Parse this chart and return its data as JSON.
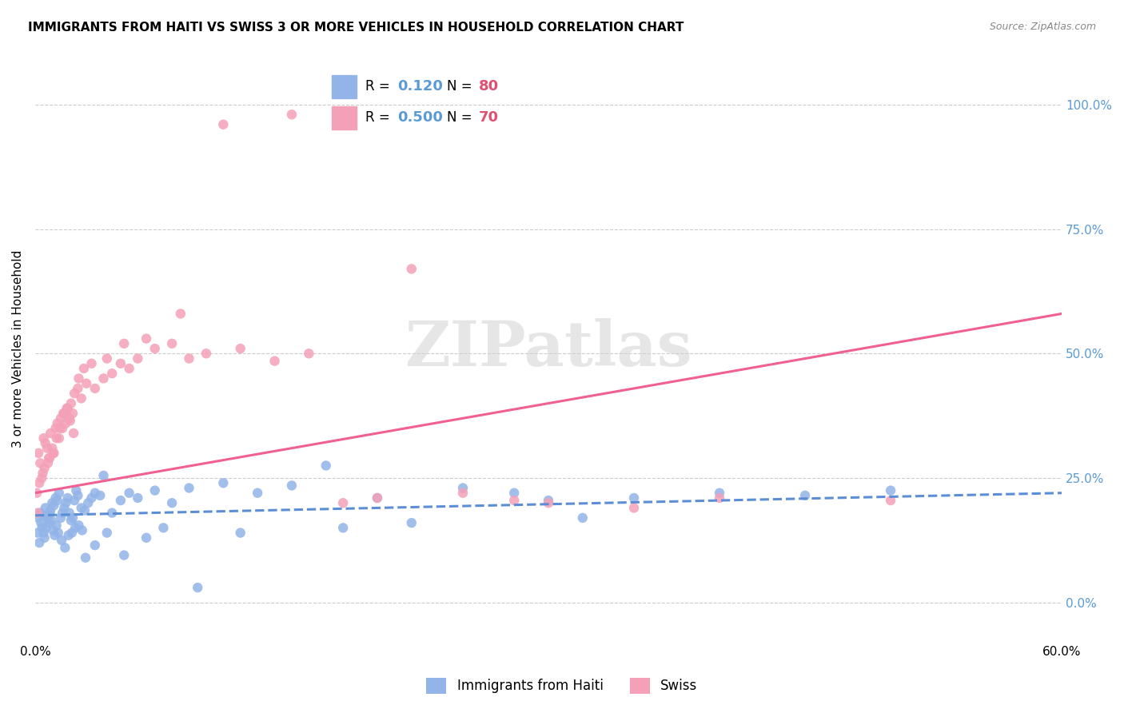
{
  "title": "IMMIGRANTS FROM HAITI VS SWISS 3 OR MORE VEHICLES IN HOUSEHOLD CORRELATION CHART",
  "source": "Source: ZipAtlas.com",
  "ylabel": "3 or more Vehicles in Household",
  "ytick_labels": [
    "0.0%",
    "25.0%",
    "50.0%",
    "75.0%",
    "100.0%"
  ],
  "ytick_values": [
    0.0,
    25.0,
    50.0,
    75.0,
    100.0
  ],
  "xlim": [
    0.0,
    60.0
  ],
  "ylim": [
    -8.0,
    110.0
  ],
  "legend_haiti_R": "0.120",
  "legend_haiti_N": "80",
  "legend_swiss_R": "0.500",
  "legend_swiss_N": "70",
  "haiti_color": "#92b4e8",
  "swiss_color": "#f4a0b8",
  "haiti_line_color": "#5b8ed4",
  "swiss_line_color": "#f06090",
  "haiti_scatter_x": [
    0.2,
    0.3,
    0.4,
    0.5,
    0.6,
    0.7,
    0.8,
    0.9,
    1.0,
    1.1,
    1.2,
    1.3,
    1.4,
    1.5,
    1.6,
    1.7,
    1.8,
    1.9,
    2.0,
    2.1,
    2.2,
    2.3,
    2.4,
    2.5,
    2.7,
    2.9,
    3.1,
    3.3,
    3.5,
    3.8,
    4.0,
    4.5,
    5.0,
    5.5,
    6.0,
    7.0,
    8.0,
    9.0,
    11.0,
    13.0,
    15.0,
    17.0,
    20.0,
    25.0,
    28.0,
    30.0,
    35.0,
    40.0,
    45.0,
    50.0,
    0.15,
    0.25,
    0.35,
    0.55,
    0.65,
    0.75,
    0.85,
    0.95,
    1.05,
    1.15,
    1.25,
    1.35,
    1.55,
    1.75,
    1.95,
    2.15,
    2.35,
    2.55,
    2.75,
    2.95,
    3.5,
    4.2,
    5.2,
    6.5,
    7.5,
    9.5,
    12.0,
    18.0,
    22.0,
    32.0
  ],
  "haiti_scatter_y": [
    17.0,
    18.0,
    15.0,
    14.0,
    19.0,
    17.5,
    16.0,
    18.5,
    20.0,
    19.5,
    21.0,
    20.5,
    22.0,
    17.0,
    18.0,
    19.0,
    20.0,
    21.0,
    18.0,
    16.5,
    17.0,
    20.5,
    22.5,
    21.5,
    19.0,
    18.5,
    20.0,
    21.0,
    22.0,
    21.5,
    25.5,
    18.0,
    20.5,
    22.0,
    21.0,
    22.5,
    20.0,
    23.0,
    24.0,
    22.0,
    23.5,
    27.5,
    21.0,
    23.0,
    22.0,
    20.5,
    21.0,
    22.0,
    21.5,
    22.5,
    14.0,
    12.0,
    16.0,
    13.0,
    15.0,
    17.0,
    18.0,
    16.5,
    14.5,
    13.5,
    15.5,
    14.0,
    12.5,
    11.0,
    13.5,
    14.0,
    15.0,
    15.5,
    14.5,
    9.0,
    11.5,
    14.0,
    9.5,
    13.0,
    15.0,
    3.0,
    14.0,
    15.0,
    16.0,
    17.0
  ],
  "swiss_scatter_x": [
    0.1,
    0.2,
    0.3,
    0.4,
    0.5,
    0.6,
    0.7,
    0.8,
    0.9,
    1.0,
    1.1,
    1.2,
    1.3,
    1.4,
    1.5,
    1.6,
    1.7,
    1.8,
    1.9,
    2.0,
    2.1,
    2.2,
    2.3,
    2.5,
    2.7,
    3.0,
    3.5,
    4.0,
    4.5,
    5.0,
    5.5,
    6.0,
    7.0,
    8.0,
    9.0,
    10.0,
    12.0,
    14.0,
    16.0,
    18.0,
    20.0,
    25.0,
    28.0,
    30.0,
    35.0,
    40.0,
    50.0,
    0.15,
    0.25,
    0.45,
    0.55,
    0.75,
    0.85,
    1.05,
    1.25,
    1.45,
    1.65,
    1.85,
    2.05,
    2.25,
    2.55,
    2.85,
    3.3,
    4.2,
    5.2,
    6.5,
    8.5,
    11.0,
    15.0,
    22.0
  ],
  "swiss_scatter_y": [
    22.0,
    30.0,
    28.0,
    25.0,
    33.0,
    32.0,
    31.0,
    29.0,
    34.0,
    31.0,
    30.0,
    35.0,
    36.0,
    33.0,
    37.0,
    35.0,
    38.0,
    36.0,
    39.0,
    37.0,
    40.0,
    38.0,
    42.0,
    43.0,
    41.0,
    44.0,
    43.0,
    45.0,
    46.0,
    48.0,
    47.0,
    49.0,
    51.0,
    52.0,
    49.0,
    50.0,
    51.0,
    48.5,
    50.0,
    20.0,
    21.0,
    22.0,
    20.5,
    20.0,
    19.0,
    21.0,
    20.5,
    18.0,
    24.0,
    26.0,
    27.0,
    28.0,
    29.0,
    30.0,
    33.0,
    35.0,
    38.0,
    39.0,
    36.5,
    34.0,
    45.0,
    47.0,
    48.0,
    49.0,
    52.0,
    53.0,
    58.0,
    96.0,
    98.0,
    67.0
  ],
  "haiti_trend_x": [
    0.0,
    60.0
  ],
  "haiti_trend_y_start": 17.5,
  "haiti_trend_y_end": 22.0,
  "swiss_trend_x": [
    0.0,
    60.0
  ],
  "swiss_trend_y_start": 22.0,
  "swiss_trend_y_end": 58.0
}
